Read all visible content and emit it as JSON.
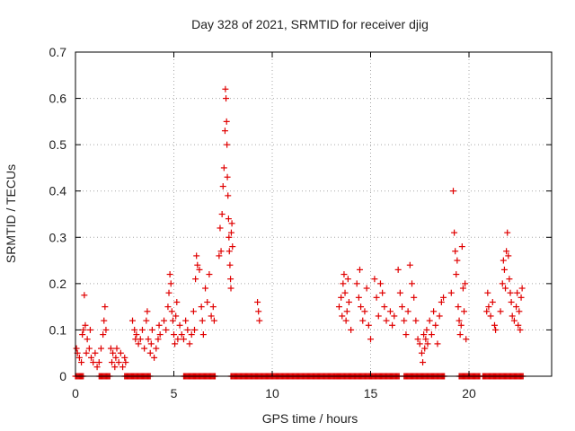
{
  "chart_data": {
    "type": "scatter",
    "title": "Day 328 of 2021, SRMTID for receiver djig",
    "xlabel": "GPS time / hours",
    "ylabel": "SRMTID / TECUs",
    "xlim": [
      0,
      24.2
    ],
    "ylim": [
      0,
      0.7
    ],
    "xticks": [
      "0",
      "5",
      "10",
      "15",
      "20"
    ],
    "xtick_values": [
      0,
      5,
      10,
      15,
      20
    ],
    "yticks": [
      "0",
      "0.1",
      "0.2",
      "0.3",
      "0.4",
      "0.5",
      "0.6",
      "0.7"
    ],
    "ytick_values": [
      0,
      0.1,
      0.2,
      0.3,
      0.4,
      0.5,
      0.6,
      0.7
    ],
    "grid": true,
    "marker": "+",
    "color": "#e00000",
    "series": [
      {
        "name": "SRMTID",
        "points": [
          [
            0.05,
            0.06
          ],
          [
            0.1,
            0.05
          ],
          [
            0.2,
            0.04
          ],
          [
            0.3,
            0.03
          ],
          [
            0.35,
            0.09
          ],
          [
            0.4,
            0.1
          ],
          [
            0.45,
            0.175
          ],
          [
            0.5,
            0.11
          ],
          [
            0.55,
            0.05
          ],
          [
            0.6,
            0.08
          ],
          [
            0.7,
            0.06
          ],
          [
            0.75,
            0.1
          ],
          [
            0.8,
            0.04
          ],
          [
            0.9,
            0.03
          ],
          [
            1.0,
            0.05
          ],
          [
            1.1,
            0.02
          ],
          [
            1.2,
            0.03
          ],
          [
            1.3,
            0.06
          ],
          [
            1.4,
            0.09
          ],
          [
            1.45,
            0.12
          ],
          [
            1.5,
            0.15
          ],
          [
            1.55,
            0.1
          ],
          [
            1.8,
            0.06
          ],
          [
            1.85,
            0.03
          ],
          [
            1.9,
            0.05
          ],
          [
            2.0,
            0.02
          ],
          [
            2.05,
            0.04
          ],
          [
            2.1,
            0.06
          ],
          [
            2.2,
            0.03
          ],
          [
            2.3,
            0.05
          ],
          [
            2.4,
            0.02
          ],
          [
            2.5,
            0.04
          ],
          [
            2.55,
            0.03
          ],
          [
            2.9,
            0.12
          ],
          [
            3.0,
            0.1
          ],
          [
            3.05,
            0.08
          ],
          [
            3.1,
            0.09
          ],
          [
            3.2,
            0.07
          ],
          [
            3.3,
            0.08
          ],
          [
            3.4,
            0.1
          ],
          [
            3.5,
            0.06
          ],
          [
            3.6,
            0.12
          ],
          [
            3.65,
            0.14
          ],
          [
            3.7,
            0.08
          ],
          [
            3.8,
            0.05
          ],
          [
            3.85,
            0.07
          ],
          [
            3.9,
            0.1
          ],
          [
            4.0,
            0.04
          ],
          [
            4.1,
            0.06
          ],
          [
            4.2,
            0.08
          ],
          [
            4.25,
            0.11
          ],
          [
            4.3,
            0.09
          ],
          [
            4.5,
            0.12
          ],
          [
            4.6,
            0.1
          ],
          [
            4.7,
            0.15
          ],
          [
            4.75,
            0.18
          ],
          [
            4.8,
            0.22
          ],
          [
            4.85,
            0.2
          ],
          [
            4.9,
            0.14
          ],
          [
            4.95,
            0.12
          ],
          [
            5.0,
            0.09
          ],
          [
            5.05,
            0.07
          ],
          [
            5.1,
            0.13
          ],
          [
            5.15,
            0.16
          ],
          [
            5.2,
            0.08
          ],
          [
            5.3,
            0.11
          ],
          [
            5.4,
            0.09
          ],
          [
            5.5,
            0.08
          ],
          [
            5.6,
            0.12
          ],
          [
            5.7,
            0.1
          ],
          [
            5.8,
            0.07
          ],
          [
            5.9,
            0.09
          ],
          [
            6.0,
            0.14
          ],
          [
            6.05,
            0.1
          ],
          [
            6.1,
            0.21
          ],
          [
            6.15,
            0.26
          ],
          [
            6.2,
            0.24
          ],
          [
            6.3,
            0.23
          ],
          [
            6.4,
            0.15
          ],
          [
            6.45,
            0.12
          ],
          [
            6.5,
            0.09
          ],
          [
            6.6,
            0.19
          ],
          [
            6.7,
            0.16
          ],
          [
            6.8,
            0.22
          ],
          [
            6.9,
            0.13
          ],
          [
            7.0,
            0.15
          ],
          [
            7.05,
            0.12
          ],
          [
            7.3,
            0.26
          ],
          [
            7.35,
            0.32
          ],
          [
            7.4,
            0.27
          ],
          [
            7.45,
            0.35
          ],
          [
            7.5,
            0.41
          ],
          [
            7.55,
            0.45
          ],
          [
            7.6,
            0.53
          ],
          [
            7.62,
            0.62
          ],
          [
            7.65,
            0.6
          ],
          [
            7.68,
            0.55
          ],
          [
            7.7,
            0.5
          ],
          [
            7.72,
            0.43
          ],
          [
            7.75,
            0.39
          ],
          [
            7.78,
            0.34
          ],
          [
            7.8,
            0.3
          ],
          [
            7.82,
            0.27
          ],
          [
            7.85,
            0.24
          ],
          [
            7.88,
            0.21
          ],
          [
            7.9,
            0.19
          ],
          [
            7.92,
            0.31
          ],
          [
            7.95,
            0.33
          ],
          [
            7.98,
            0.28
          ],
          [
            9.25,
            0.16
          ],
          [
            9.3,
            0.14
          ],
          [
            9.35,
            0.12
          ],
          [
            13.4,
            0.15
          ],
          [
            13.5,
            0.17
          ],
          [
            13.55,
            0.13
          ],
          [
            13.6,
            0.2
          ],
          [
            13.65,
            0.22
          ],
          [
            13.7,
            0.18
          ],
          [
            13.75,
            0.12
          ],
          [
            13.8,
            0.14
          ],
          [
            13.85,
            0.21
          ],
          [
            13.9,
            0.16
          ],
          [
            14.0,
            0.1
          ],
          [
            14.3,
            0.2
          ],
          [
            14.4,
            0.17
          ],
          [
            14.45,
            0.23
          ],
          [
            14.5,
            0.15
          ],
          [
            14.6,
            0.12
          ],
          [
            14.7,
            0.14
          ],
          [
            14.8,
            0.19
          ],
          [
            14.9,
            0.11
          ],
          [
            15.0,
            0.08
          ],
          [
            15.2,
            0.21
          ],
          [
            15.3,
            0.17
          ],
          [
            15.4,
            0.13
          ],
          [
            15.5,
            0.2
          ],
          [
            15.6,
            0.18
          ],
          [
            15.7,
            0.15
          ],
          [
            15.8,
            0.12
          ],
          [
            16.0,
            0.14
          ],
          [
            16.1,
            0.11
          ],
          [
            16.2,
            0.13
          ],
          [
            16.4,
            0.23
          ],
          [
            16.5,
            0.18
          ],
          [
            16.6,
            0.15
          ],
          [
            16.7,
            0.12
          ],
          [
            16.8,
            0.09
          ],
          [
            16.9,
            0.14
          ],
          [
            17.0,
            0.24
          ],
          [
            17.1,
            0.2
          ],
          [
            17.2,
            0.17
          ],
          [
            17.3,
            0.12
          ],
          [
            17.4,
            0.08
          ],
          [
            17.5,
            0.07
          ],
          [
            17.6,
            0.05
          ],
          [
            17.65,
            0.03
          ],
          [
            17.7,
            0.09
          ],
          [
            17.75,
            0.06
          ],
          [
            17.8,
            0.08
          ],
          [
            17.85,
            0.1
          ],
          [
            17.9,
            0.07
          ],
          [
            18.0,
            0.12
          ],
          [
            18.1,
            0.09
          ],
          [
            18.2,
            0.14
          ],
          [
            18.3,
            0.11
          ],
          [
            18.4,
            0.07
          ],
          [
            18.5,
            0.13
          ],
          [
            18.6,
            0.16
          ],
          [
            18.7,
            0.17
          ],
          [
            19.1,
            0.18
          ],
          [
            19.2,
            0.4
          ],
          [
            19.25,
            0.31
          ],
          [
            19.3,
            0.27
          ],
          [
            19.35,
            0.22
          ],
          [
            19.4,
            0.25
          ],
          [
            19.45,
            0.15
          ],
          [
            19.5,
            0.12
          ],
          [
            19.55,
            0.09
          ],
          [
            19.6,
            0.11
          ],
          [
            19.65,
            0.28
          ],
          [
            19.7,
            0.19
          ],
          [
            19.75,
            0.14
          ],
          [
            19.8,
            0.2
          ],
          [
            19.85,
            0.08
          ],
          [
            20.9,
            0.14
          ],
          [
            20.95,
            0.18
          ],
          [
            21.0,
            0.15
          ],
          [
            21.1,
            0.13
          ],
          [
            21.2,
            0.16
          ],
          [
            21.3,
            0.11
          ],
          [
            21.35,
            0.1
          ],
          [
            21.6,
            0.14
          ],
          [
            21.7,
            0.2
          ],
          [
            21.75,
            0.25
          ],
          [
            21.8,
            0.23
          ],
          [
            21.85,
            0.19
          ],
          [
            21.9,
            0.27
          ],
          [
            21.95,
            0.31
          ],
          [
            22.0,
            0.26
          ],
          [
            22.05,
            0.21
          ],
          [
            22.1,
            0.18
          ],
          [
            22.15,
            0.16
          ],
          [
            22.2,
            0.13
          ],
          [
            22.3,
            0.12
          ],
          [
            22.4,
            0.15
          ],
          [
            22.45,
            0.18
          ],
          [
            22.5,
            0.11
          ],
          [
            22.55,
            0.14
          ],
          [
            22.6,
            0.1
          ],
          [
            22.65,
            0.17
          ],
          [
            22.7,
            0.19
          ]
        ],
        "zero_ranges": [
          [
            0.0,
            0.4
          ],
          [
            1.2,
            1.8
          ],
          [
            2.5,
            3.8
          ],
          [
            5.5,
            7.1
          ],
          [
            7.9,
            10.2
          ],
          [
            10.2,
            13.4
          ],
          [
            13.3,
            16.5
          ],
          [
            16.7,
            18.8
          ],
          [
            19.5,
            20.6
          ],
          [
            20.7,
            22.8
          ]
        ]
      }
    ]
  }
}
